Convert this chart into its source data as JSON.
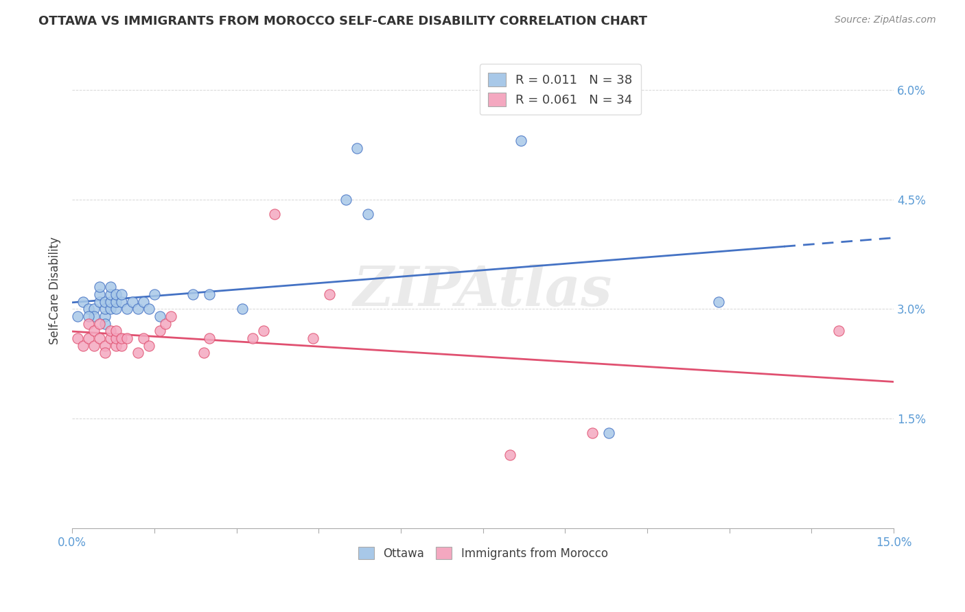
{
  "title": "OTTAWA VS IMMIGRANTS FROM MOROCCO SELF-CARE DISABILITY CORRELATION CHART",
  "source": "Source: ZipAtlas.com",
  "ylabel": "Self-Care Disability",
  "xlim": [
    0.0,
    0.15
  ],
  "ylim": [
    0.0,
    0.065
  ],
  "xticks": [
    0.0,
    0.015,
    0.03,
    0.045,
    0.06,
    0.075,
    0.09,
    0.105,
    0.12,
    0.135,
    0.15
  ],
  "xtick_labels_shown": {
    "0.0": "0.0%",
    "0.15": "15.0%"
  },
  "yticks": [
    0.0,
    0.015,
    0.03,
    0.045,
    0.06
  ],
  "ytick_labels": [
    "",
    "1.5%",
    "3.0%",
    "4.5%",
    "6.0%"
  ],
  "legend_r1": "R = 0.011   N = 38",
  "legend_r2": "R = 0.061   N = 34",
  "color_blue": "#A8C8E8",
  "color_pink": "#F4A8C0",
  "line_blue": "#4472C4",
  "line_pink": "#E05070",
  "watermark": "ZIPAtlas",
  "title_color": "#333333",
  "source_color": "#888888",
  "ottawa_x": [
    0.001,
    0.002,
    0.003,
    0.004,
    0.004,
    0.005,
    0.005,
    0.005,
    0.006,
    0.006,
    0.006,
    0.007,
    0.007,
    0.007,
    0.007,
    0.008,
    0.008,
    0.008,
    0.009,
    0.009,
    0.01,
    0.011,
    0.012,
    0.013,
    0.014,
    0.015,
    0.016,
    0.022,
    0.025,
    0.031,
    0.05,
    0.052,
    0.054,
    0.082,
    0.098,
    0.118,
    0.003,
    0.006
  ],
  "ottawa_y": [
    0.029,
    0.031,
    0.03,
    0.03,
    0.029,
    0.031,
    0.032,
    0.033,
    0.029,
    0.03,
    0.031,
    0.03,
    0.031,
    0.032,
    0.033,
    0.03,
    0.031,
    0.032,
    0.031,
    0.032,
    0.03,
    0.031,
    0.03,
    0.031,
    0.03,
    0.032,
    0.029,
    0.032,
    0.032,
    0.03,
    0.045,
    0.052,
    0.043,
    0.053,
    0.013,
    0.031,
    0.029,
    0.028
  ],
  "morocco_x": [
    0.001,
    0.002,
    0.003,
    0.003,
    0.004,
    0.004,
    0.005,
    0.005,
    0.006,
    0.006,
    0.007,
    0.007,
    0.008,
    0.008,
    0.008,
    0.009,
    0.009,
    0.01,
    0.012,
    0.013,
    0.014,
    0.016,
    0.017,
    0.018,
    0.024,
    0.025,
    0.033,
    0.035,
    0.037,
    0.044,
    0.047,
    0.08,
    0.095,
    0.14
  ],
  "morocco_y": [
    0.026,
    0.025,
    0.028,
    0.026,
    0.025,
    0.027,
    0.026,
    0.028,
    0.025,
    0.024,
    0.026,
    0.027,
    0.025,
    0.026,
    0.027,
    0.025,
    0.026,
    0.026,
    0.024,
    0.026,
    0.025,
    0.027,
    0.028,
    0.029,
    0.024,
    0.026,
    0.026,
    0.027,
    0.043,
    0.026,
    0.032,
    0.01,
    0.013,
    0.027
  ]
}
